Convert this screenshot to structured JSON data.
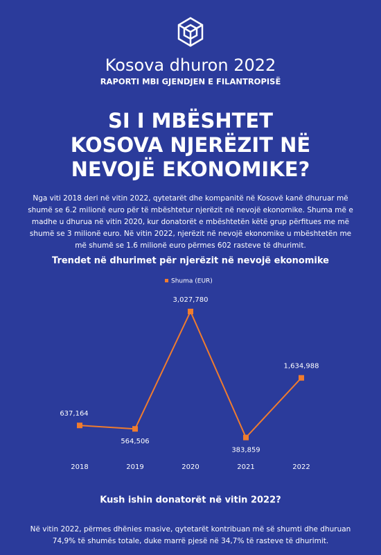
{
  "header": {
    "title": "Kosova dhuron 2022",
    "subtitle": "RAPORTI MBI GJENDJEN E FILANTROPISË",
    "headline": [
      "SI I MBËSHTET",
      "KOSOVA NJERËZIT NË",
      "NEVOJË EKONOMIKE?"
    ]
  },
  "intro": "Nga viti 2018 deri në vitin 2022, qytetarët dhe kompanitë në Kosovë kanë dhuruar më shumë se 6.2 milionë euro për të mbështetur njerëzit në nevojë ekonomike. Shuma më e madhe u dhurua në vitin 2020, kur donatorët e mbështetën këtë grup përfitues me më shumë se 3 milionë euro. Në vitin 2022, njerëzit në nevojë ekonomike u mbështetën me më shumë se 1.6 milionë euro përmes 602 rasteve të dhurimit.",
  "chart_data": {
    "type": "line",
    "title": "Trendet në dhurimet për njerëzit në nevojë ekonomike",
    "categories": [
      "2018",
      "2019",
      "2020",
      "2021",
      "2022"
    ],
    "series": [
      {
        "name": "Shuma (EUR)",
        "color": "#f07c2e",
        "values": [
          637164,
          564506,
          3027780,
          383859,
          1634988
        ],
        "value_labels": [
          "637,164",
          "564,506",
          "3,027,780",
          "383,859",
          "1,634,988"
        ]
      }
    ],
    "legend": "top"
  },
  "section": {
    "title": "Kush ishin donatorët në vitin 2022?",
    "text": "Në vitin 2022, përmes dhënies masive, qytetarët kontribuan më së shumti dhe dhuruan 74,9% të shumës totale, duke marrë pjesë në 34,7% të rasteve të dhurimit."
  }
}
